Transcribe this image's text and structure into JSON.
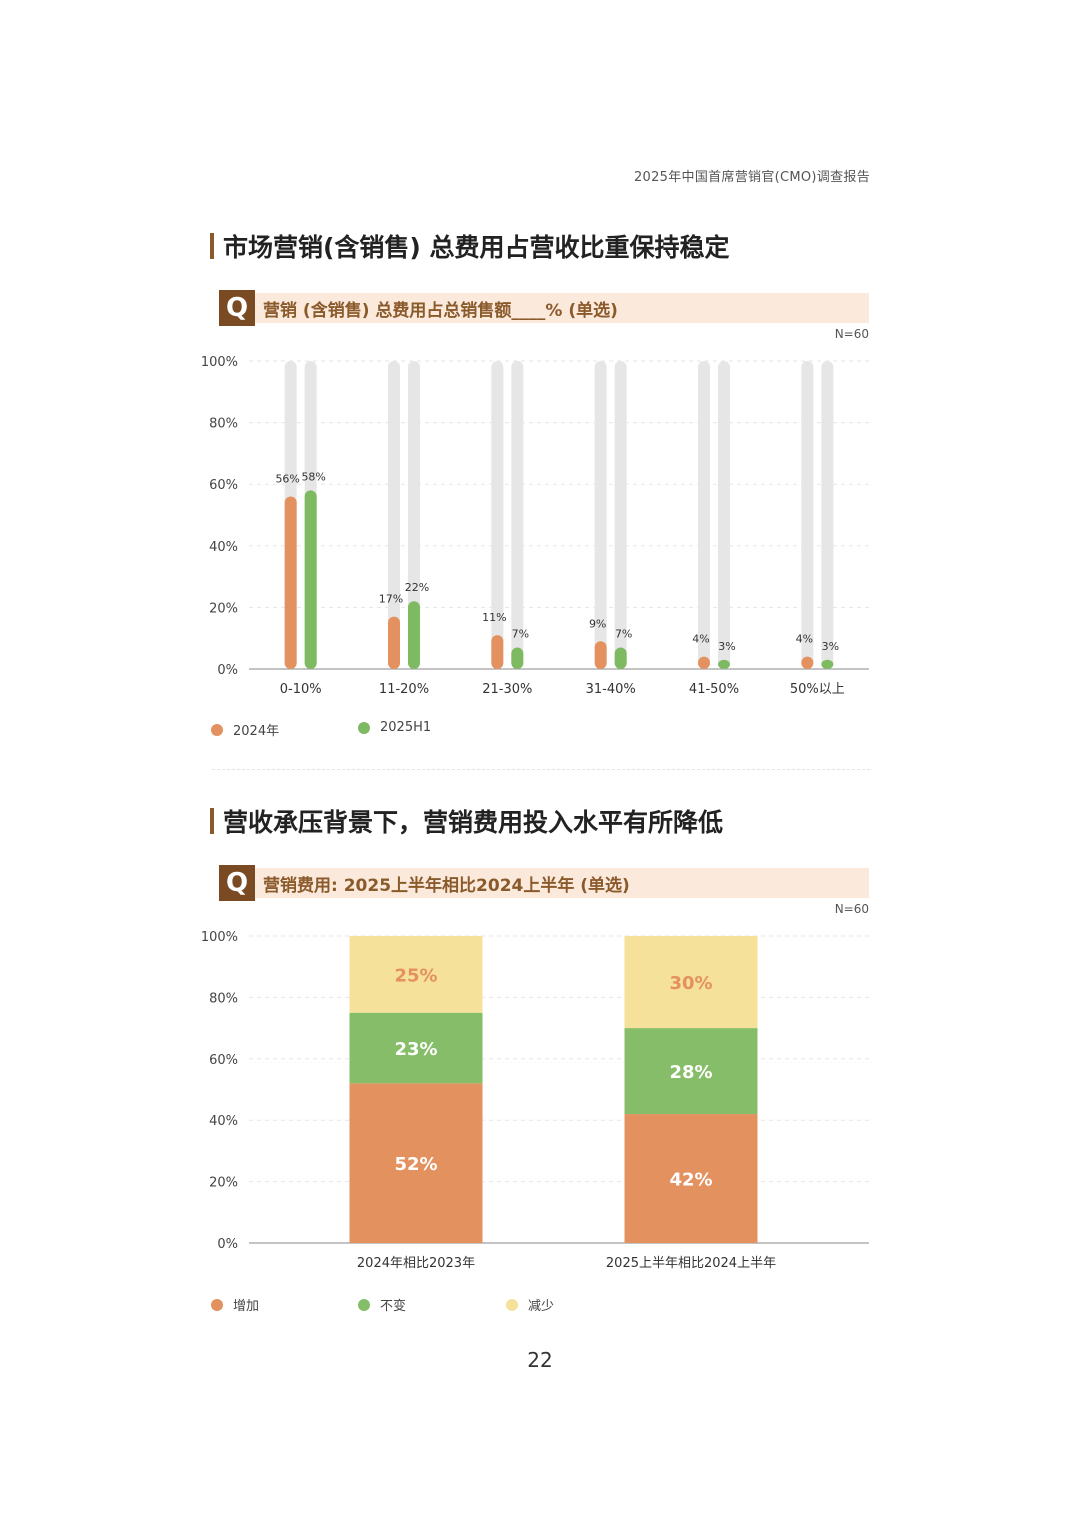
{
  "header": {
    "report_title": "2025年中国首席营销官(CMO)调查报告"
  },
  "section1": {
    "title": "市场营销(含销售) 总费用占营收比重保持稳定",
    "question": "营销 (含销售) 总费用占总销售额____% (单选)",
    "n_label": "N=60",
    "legend": [
      {
        "label": "2024年",
        "color": "#e3915e"
      },
      {
        "label": "2025H1",
        "color": "#7dba62"
      }
    ]
  },
  "section2": {
    "title": "营收承压背景下，营销费用投入水平有所降低",
    "question": "营销费用: 2025上半年相比2024上半年 (单选)",
    "n_label": "N=60",
    "legend": [
      {
        "label": "增加",
        "color": "#e3915e"
      },
      {
        "label": "不变",
        "color": "#86bd68"
      },
      {
        "label": "减少",
        "color": "#f5e19a"
      }
    ]
  },
  "page_number": "22",
  "colors": {
    "accent": "#7a4a22",
    "orange": "#e3915e",
    "green": "#7dba62",
    "yellow": "#f5e19a",
    "track": "#e6e6e6"
  },
  "chart_data": [
    {
      "type": "bar",
      "categories": [
        "0-10%",
        "11-20%",
        "21-30%",
        "31-40%",
        "41-50%",
        "50%以上"
      ],
      "series": [
        {
          "name": "2024年",
          "values": [
            56,
            17,
            11,
            9,
            4,
            4
          ],
          "labels": [
            "56%",
            "17%",
            "11%",
            "9%",
            "4%",
            "4%"
          ]
        },
        {
          "name": "2025H1",
          "values": [
            58,
            22,
            7,
            7,
            3,
            3
          ],
          "labels": [
            "58%",
            "22%",
            "7%",
            "7%",
            "3%",
            "3%"
          ]
        }
      ],
      "y_ticks": [
        "0%",
        "20%",
        "40%",
        "60%",
        "80%",
        "100%"
      ],
      "ylim": [
        0,
        100
      ],
      "grid": true,
      "legend": "bottom-left"
    },
    {
      "type": "bar",
      "stacked": true,
      "categories": [
        "2024年相比2023年",
        "2025上半年相比2024上半年"
      ],
      "series": [
        {
          "name": "增加",
          "values": [
            52,
            42
          ],
          "labels": [
            "52%",
            "42%"
          ]
        },
        {
          "name": "不变",
          "values": [
            23,
            28
          ],
          "labels": [
            "23%",
            "28%"
          ]
        },
        {
          "name": "减少",
          "values": [
            25,
            30
          ],
          "labels": [
            "25%",
            "30%"
          ]
        }
      ],
      "y_ticks": [
        "0%",
        "20%",
        "40%",
        "60%",
        "80%",
        "100%"
      ],
      "ylim": [
        0,
        100
      ],
      "grid": true,
      "legend": "bottom-left"
    }
  ]
}
